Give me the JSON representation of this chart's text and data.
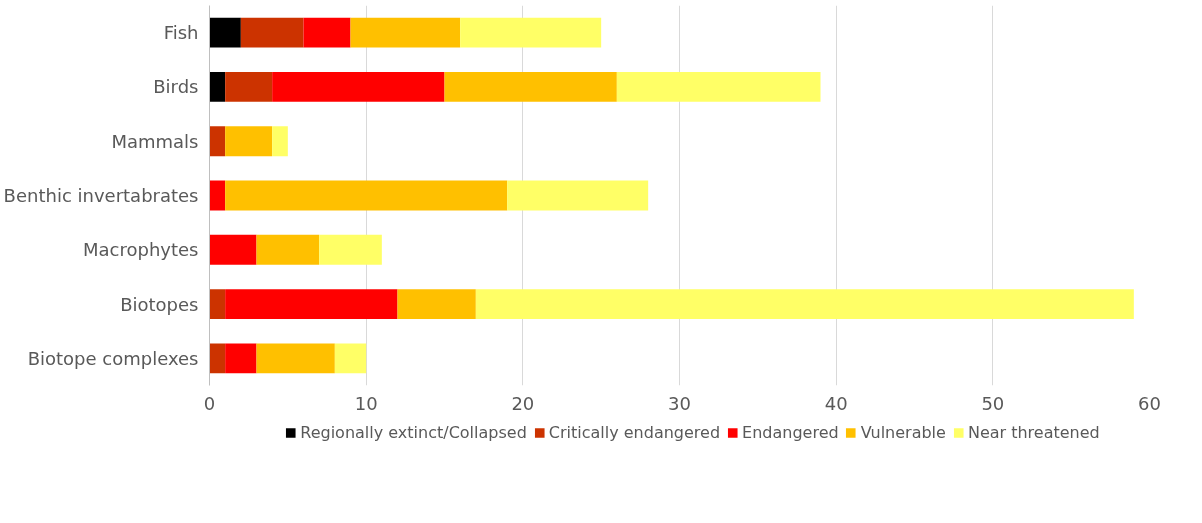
{
  "chart_data": {
    "type": "bar",
    "orientation": "horizontal",
    "stacked": true,
    "categories": [
      "Fish",
      "Birds",
      "Mammals",
      "Benthic invertabrates",
      "Macrophytes",
      "Biotopes",
      "Biotope complexes"
    ],
    "series": [
      {
        "name": "Regionally extinct/Collapsed",
        "color": "#000000",
        "values": [
          2,
          1,
          0,
          0,
          0,
          0,
          0
        ]
      },
      {
        "name": "Critically endangered",
        "color": "#cc3300",
        "values": [
          4,
          3,
          1,
          0,
          0,
          1,
          1
        ]
      },
      {
        "name": "Endangered",
        "color": "#ff0000",
        "values": [
          3,
          11,
          0,
          1,
          3,
          11,
          2
        ]
      },
      {
        "name": "Vulnerable",
        "color": "#ffc000",
        "values": [
          7,
          11,
          3,
          18,
          4,
          5,
          5
        ]
      },
      {
        "name": "Near threatened",
        "color": "#ffff66",
        "values": [
          9,
          13,
          1,
          9,
          4,
          42,
          2
        ]
      }
    ],
    "xlim": [
      0,
      60
    ],
    "xticks": [
      0,
      10,
      20,
      30,
      40,
      50,
      60
    ],
    "grid": "x",
    "legend": "bottom"
  }
}
